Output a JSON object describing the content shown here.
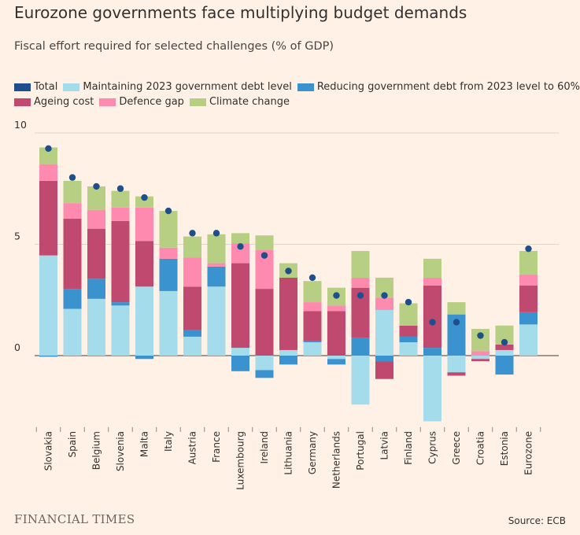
{
  "title": "Eurozone governments face multiplying budget demands",
  "subtitle": "Fiscal effort required for selected challenges (% of GDP)",
  "source": "Source: ECB",
  "brand": "FINANCIAL TIMES",
  "legend": {
    "row1": [
      {
        "label": "Total",
        "color": "#1F4E8C"
      },
      {
        "label": "Maintaining 2023 government debt level",
        "color": "#A5DCEB"
      },
      {
        "label": "Reducing government debt from 2023 level to 60%",
        "color": "#3A93CF"
      }
    ],
    "row2": [
      {
        "label": "Ageing cost",
        "color": "#C04A6F"
      },
      {
        "label": "Defence gap",
        "color": "#FF8AB0"
      },
      {
        "label": "Climate change",
        "color": "#B7CF82"
      }
    ]
  },
  "chart_data": {
    "type": "bar",
    "stacked": true,
    "ylim": [
      -3,
      10
    ],
    "yticks": [
      0,
      5,
      10
    ],
    "grid": true,
    "categories": [
      "Slovakia",
      "Spain",
      "Belgium",
      "Slovenia",
      "Malta",
      "Italy",
      "Austria",
      "France",
      "Luxembourg",
      "Ireland",
      "Lithuania",
      "Germany",
      "Netherlands",
      "Portugal",
      "Latvia",
      "Finland",
      "Cyprus",
      "Greece",
      "Croatia",
      "Estonia",
      "Eurozone"
    ],
    "series": [
      {
        "name": "Maintaining 2023 government debt level",
        "color": "#A5DCEB",
        "values": [
          4.5,
          2.1,
          2.55,
          2.25,
          3.1,
          2.9,
          0.85,
          3.1,
          0.35,
          -0.65,
          0.25,
          0.6,
          -0.15,
          -2.2,
          2.05,
          0.6,
          -2.95,
          -0.75,
          -0.15,
          0.25,
          1.4
        ]
      },
      {
        "name": "Reducing government debt from 2023 level to 60%",
        "color": "#3A93CF",
        "values": [
          -0.05,
          0.9,
          0.9,
          0.15,
          -0.15,
          1.45,
          0.3,
          0.9,
          -0.7,
          -0.35,
          -0.4,
          0.05,
          -0.25,
          0.8,
          -0.25,
          0.25,
          0.35,
          1.85,
          0.0,
          -0.85,
          0.55
        ]
      },
      {
        "name": "Ageing cost",
        "color": "#C04A6F",
        "values": [
          3.35,
          3.15,
          2.25,
          3.65,
          2.05,
          0.0,
          1.95,
          0.0,
          3.8,
          3.0,
          3.25,
          1.35,
          2.0,
          2.25,
          -0.8,
          0.5,
          2.8,
          -0.15,
          -0.1,
          0.25,
          1.2
        ]
      },
      {
        "name": "Defence gap",
        "color": "#FF8AB0",
        "values": [
          0.75,
          0.7,
          0.85,
          0.6,
          1.5,
          0.5,
          1.3,
          0.15,
          0.9,
          1.75,
          0.0,
          0.4,
          0.25,
          0.45,
          0.55,
          0.0,
          0.35,
          0.0,
          0.2,
          0.0,
          0.5
        ]
      },
      {
        "name": "Climate change",
        "color": "#B7CF82",
        "values": [
          0.75,
          1.0,
          1.05,
          0.75,
          0.5,
          1.65,
          0.95,
          1.3,
          0.45,
          0.65,
          0.65,
          0.95,
          0.8,
          1.2,
          0.9,
          1.0,
          0.85,
          0.55,
          1.0,
          0.85,
          1.05
        ]
      }
    ],
    "total": {
      "name": "Total",
      "color": "#1F4E8C",
      "values": [
        9.3,
        8.0,
        7.6,
        7.5,
        7.1,
        6.5,
        5.5,
        5.5,
        4.9,
        4.5,
        3.8,
        3.5,
        2.7,
        2.7,
        2.7,
        2.4,
        1.5,
        1.5,
        0.9,
        0.6,
        4.8
      ]
    }
  }
}
